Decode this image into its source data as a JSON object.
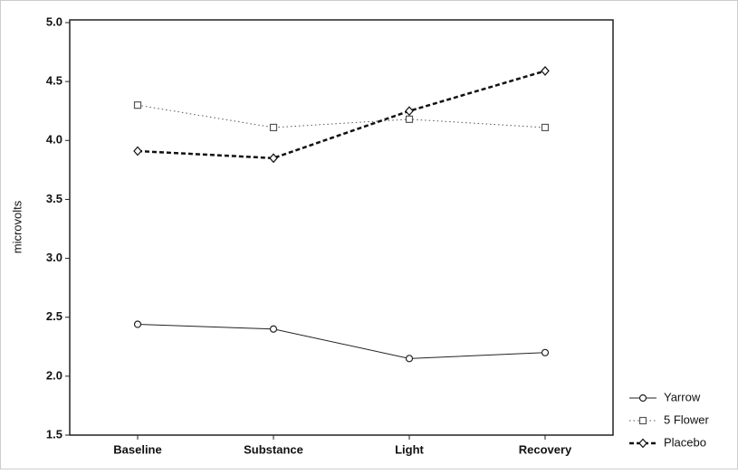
{
  "chart_data": {
    "type": "line",
    "y_label": "microvolts",
    "categories": [
      "Baseline",
      "Substance",
      "Light",
      "Recovery"
    ],
    "series": [
      {
        "name": "Yarrow",
        "color": "#222222",
        "marker": "circle",
        "line_style": "solid",
        "values": [
          2.44,
          2.4,
          2.15,
          2.2
        ]
      },
      {
        "name": "5 Flower",
        "color": "#555555",
        "marker": "square",
        "line_style": "dotted",
        "values": [
          4.3,
          4.11,
          4.18,
          4.11
        ]
      },
      {
        "name": "Placebo",
        "color": "#111111",
        "marker": "diamond",
        "line_style": "dashed",
        "values": [
          3.91,
          3.85,
          4.25,
          4.59
        ]
      }
    ],
    "ylim": [
      1.5,
      5.0
    ],
    "yticks": [
      1.5,
      {
        "value": 2,
        "label": "2.0"
      },
      2.5,
      {
        "value": 3,
        "label": "3.0"
      },
      3.5,
      {
        "value": 4,
        "label": "4.0"
      },
      4.5,
      {
        "value": 5,
        "label": "5.0"
      }
    ],
    "grid": false,
    "legend": "right"
  }
}
